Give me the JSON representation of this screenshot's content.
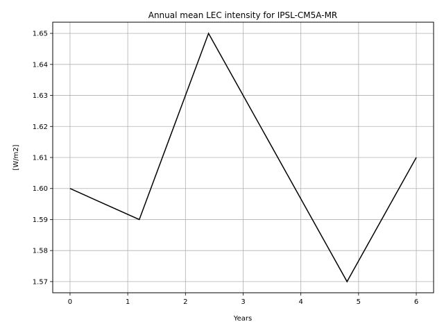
{
  "chart_data": {
    "type": "line",
    "title": "Annual mean LEC intensity for IPSL-CM5A-MR",
    "xlabel": "Years",
    "ylabel": "[W/m2]",
    "x": [
      0,
      1.2,
      2.4,
      3.6,
      4.8,
      6.0
    ],
    "series": [
      {
        "values": [
          1.6,
          1.59,
          1.65,
          1.61,
          1.57,
          1.61
        ],
        "color": "#000000"
      }
    ],
    "xlim": [
      -0.3,
      6.3
    ],
    "ylim": [
      1.5664,
      1.6536
    ],
    "xticks": [
      "0",
      "1",
      "2",
      "3",
      "4",
      "5",
      "6"
    ],
    "yticks": [
      "1.57",
      "1.58",
      "1.59",
      "1.60",
      "1.61",
      "1.62",
      "1.63",
      "1.64",
      "1.65"
    ],
    "grid": true,
    "grid_color": "#b0b0b0"
  }
}
